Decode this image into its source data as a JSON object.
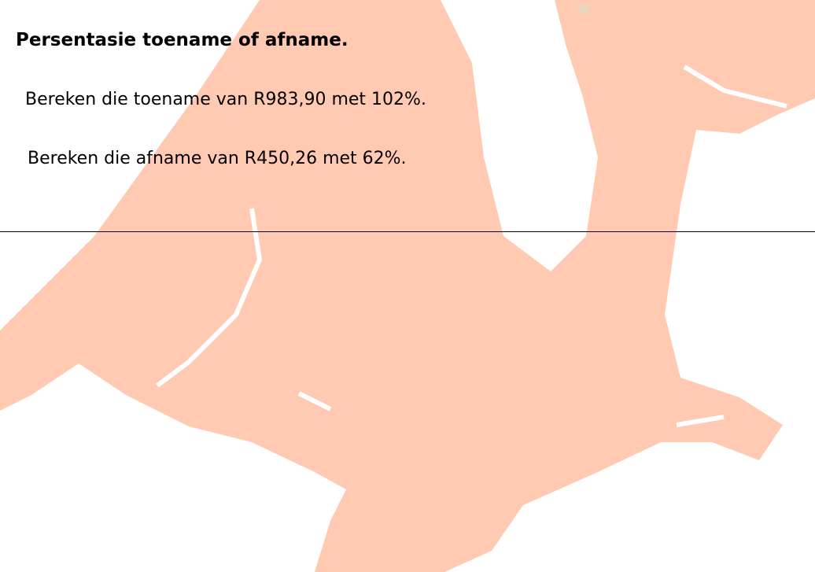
{
  "title": "Persentasie toename of afname.",
  "items": [
    "Bereken die toename van R983,90 met 102%.",
    "Bereken die afname van R450,26 met 62%."
  ]
}
